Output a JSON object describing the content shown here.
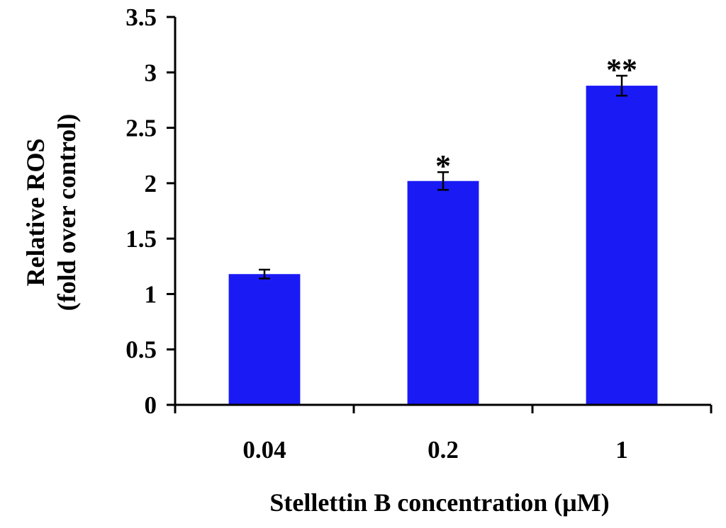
{
  "chart_data": {
    "type": "bar",
    "title": "",
    "xlabel": "Stellettin B concentration (μM)",
    "ylabel": [
      "Relative ROS",
      "(fold over control)"
    ],
    "categories": [
      "0.04",
      "0.2",
      "1"
    ],
    "values": [
      1.18,
      2.02,
      2.88
    ],
    "errors": [
      0.04,
      0.08,
      0.09
    ],
    "significance": [
      "",
      "*",
      "**"
    ],
    "ylim": [
      0,
      3.5
    ],
    "yticks": [
      0,
      0.5,
      1,
      1.5,
      2,
      2.5,
      3,
      3.5
    ],
    "ytick_labels": [
      "0",
      "0.5",
      "1",
      "1.5",
      "2",
      "2.5",
      "3",
      "3.5"
    ],
    "bar_color": "#1a1af5",
    "grid": false,
    "legend": "none"
  }
}
